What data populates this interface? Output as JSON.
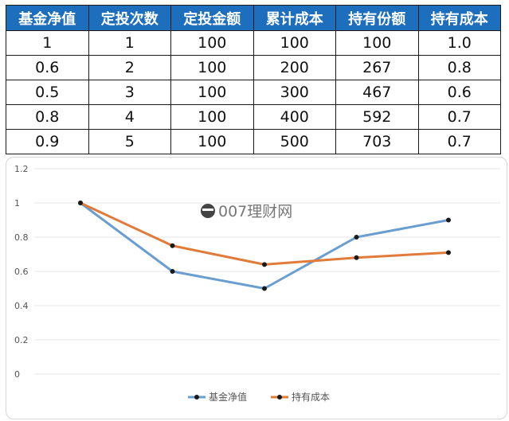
{
  "table": {
    "headers": [
      "基金净值",
      "定投次数",
      "定投金额",
      "累计成本",
      "持有份额",
      "持有成本"
    ],
    "rows": [
      [
        "1",
        "1",
        "100",
        "100",
        "100",
        "1.0"
      ],
      [
        "0.6",
        "2",
        "100",
        "200",
        "267",
        "0.8"
      ],
      [
        "0.5",
        "3",
        "100",
        "300",
        "467",
        "0.6"
      ],
      [
        "0.8",
        "4",
        "100",
        "400",
        "592",
        "0.7"
      ],
      [
        "0.9",
        "5",
        "100",
        "500",
        "703",
        "0.7"
      ]
    ]
  },
  "watermark": {
    "text": "007理财网",
    "icon": "spy-mascot-icon"
  },
  "colors": {
    "header_bg": "#1d6fbd",
    "series_nav": "#6a9ed0",
    "series_cost": "#e07b39"
  },
  "chart_data": {
    "type": "line",
    "x": [
      1,
      2,
      3,
      4,
      5
    ],
    "ylim": [
      0,
      1.2
    ],
    "yticks": [
      "0",
      "0.2",
      "0.4",
      "0.6",
      "0.8",
      "1",
      "1.2"
    ],
    "grid": true,
    "legend_position": "bottom",
    "series": [
      {
        "name": "基金净值",
        "values": [
          1,
          0.6,
          0.5,
          0.8,
          0.9
        ],
        "color": "#6a9ed0"
      },
      {
        "name": "持有成本",
        "values": [
          1,
          0.75,
          0.64,
          0.68,
          0.71
        ],
        "color": "#e07b39"
      }
    ]
  }
}
